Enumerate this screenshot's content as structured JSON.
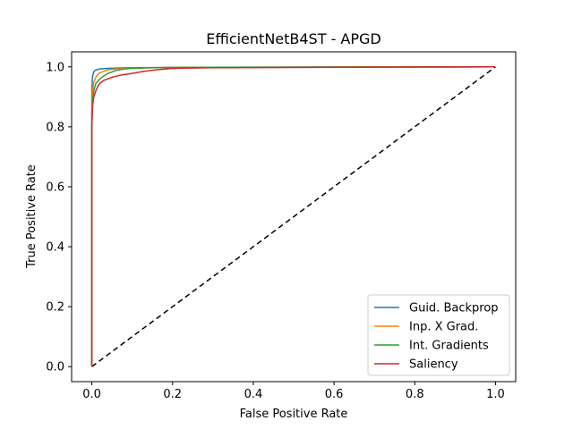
{
  "chart_data": {
    "type": "line",
    "title": "EfficientNetB4ST - APGD",
    "xlabel": "False Positive Rate",
    "ylabel": "True Positive Rate",
    "xlim": [
      -0.05,
      1.05
    ],
    "ylim": [
      -0.05,
      1.05
    ],
    "xticks": [
      0.0,
      0.2,
      0.4,
      0.6,
      0.8,
      1.0
    ],
    "yticks": [
      0.0,
      0.2,
      0.4,
      0.6,
      0.8,
      1.0
    ],
    "xtick_labels": [
      "0.0",
      "0.2",
      "0.4",
      "0.6",
      "0.8",
      "1.0"
    ],
    "ytick_labels": [
      "0.0",
      "0.2",
      "0.4",
      "0.6",
      "0.8",
      "1.0"
    ],
    "legend_position": "lower-right",
    "series": [
      {
        "name": "Guid. Backprop",
        "color": "#1f77b4",
        "x": [
          0,
          0.0,
          0.001,
          0.002,
          0.004,
          0.006,
          0.008,
          0.012,
          0.02,
          0.04,
          0.1,
          0.2,
          0.5,
          1.0
        ],
        "y": [
          0,
          0.9,
          0.95,
          0.97,
          0.98,
          0.985,
          0.988,
          0.99,
          0.993,
          0.995,
          0.997,
          0.998,
          0.999,
          1.0
        ]
      },
      {
        "name": "Inp. X Grad.",
        "color": "#ff7f0e",
        "x": [
          0,
          0.0,
          0.002,
          0.005,
          0.01,
          0.015,
          0.02,
          0.03,
          0.04,
          0.06,
          0.1,
          0.2,
          0.5,
          1.0
        ],
        "y": [
          0,
          0.85,
          0.92,
          0.95,
          0.965,
          0.975,
          0.98,
          0.985,
          0.99,
          0.993,
          0.996,
          0.998,
          0.999,
          1.0
        ]
      },
      {
        "name": "Int. Gradients",
        "color": "#2ca02c",
        "x": [
          0,
          0.0,
          0.002,
          0.005,
          0.01,
          0.02,
          0.03,
          0.04,
          0.06,
          0.08,
          0.1,
          0.15,
          0.2,
          0.5,
          1.0
        ],
        "y": [
          0,
          0.8,
          0.88,
          0.92,
          0.945,
          0.96,
          0.97,
          0.978,
          0.988,
          0.993,
          0.995,
          0.997,
          0.998,
          0.999,
          1.0
        ]
      },
      {
        "name": "Saliency",
        "color": "#d62728",
        "x": [
          0,
          0.0,
          0.002,
          0.005,
          0.01,
          0.015,
          0.02,
          0.03,
          0.04,
          0.05,
          0.07,
          0.1,
          0.13,
          0.16,
          0.2,
          0.3,
          0.5,
          1.0
        ],
        "y": [
          0,
          0.8,
          0.87,
          0.9,
          0.92,
          0.935,
          0.945,
          0.955,
          0.96,
          0.965,
          0.972,
          0.978,
          0.985,
          0.99,
          0.995,
          0.997,
          0.998,
          1.0
        ]
      }
    ],
    "reference_line": {
      "name": "chance-diagonal",
      "color": "#000000",
      "dash": "dashed",
      "x": [
        0,
        1
      ],
      "y": [
        0,
        1
      ]
    }
  }
}
